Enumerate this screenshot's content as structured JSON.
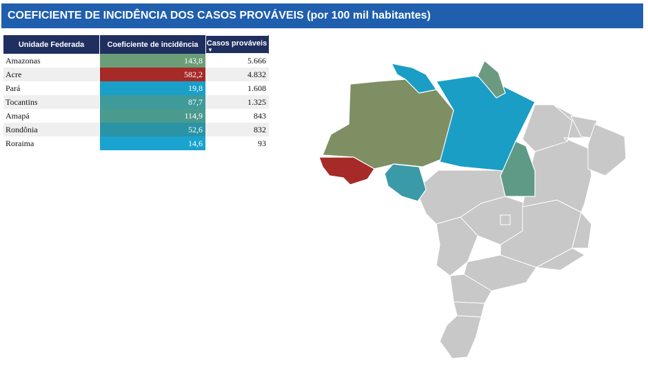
{
  "title": "COEFICIENTE DE INCIDÊNCIA DOS CASOS PROVÁVEIS (por 100 mil habitantes)",
  "table": {
    "headers": [
      "Unidade Federada",
      "Coeficiente de incidência",
      "Casos prováveis"
    ],
    "sort_icon": "sort-descending-icon",
    "rows": [
      {
        "uf": "Amazonas",
        "coef": "143,8",
        "casos": "5.666",
        "color": "#6b9e78"
      },
      {
        "uf": "Acre",
        "coef": "582,2",
        "casos": "4.832",
        "color": "#a62a27"
      },
      {
        "uf": "Pará",
        "coef": "19,8",
        "casos": "1.608",
        "color": "#1a9fc9"
      },
      {
        "uf": "Tocantins",
        "coef": "87,7",
        "casos": "1.325",
        "color": "#3f9a9a"
      },
      {
        "uf": "Amapá",
        "coef": "114,9",
        "casos": "843",
        "color": "#4b9a8e"
      },
      {
        "uf": "Rondônia",
        "coef": "52,6",
        "casos": "832",
        "color": "#2a93a6"
      },
      {
        "uf": "Roraima",
        "coef": "14,6",
        "casos": "93",
        "color": "#1aa3cf"
      }
    ]
  },
  "map": {
    "colors": {
      "Amazonas": "#7e8f63",
      "Acre": "#a62a27",
      "Para": "#1a9ec6",
      "Tocantins": "#5f9a87",
      "Amapa": "#6a9a80",
      "Rondonia": "#3a9aa8",
      "Roraima": "#1a9ec6",
      "other": "#c8c8c8",
      "border": "#ffffff"
    }
  }
}
